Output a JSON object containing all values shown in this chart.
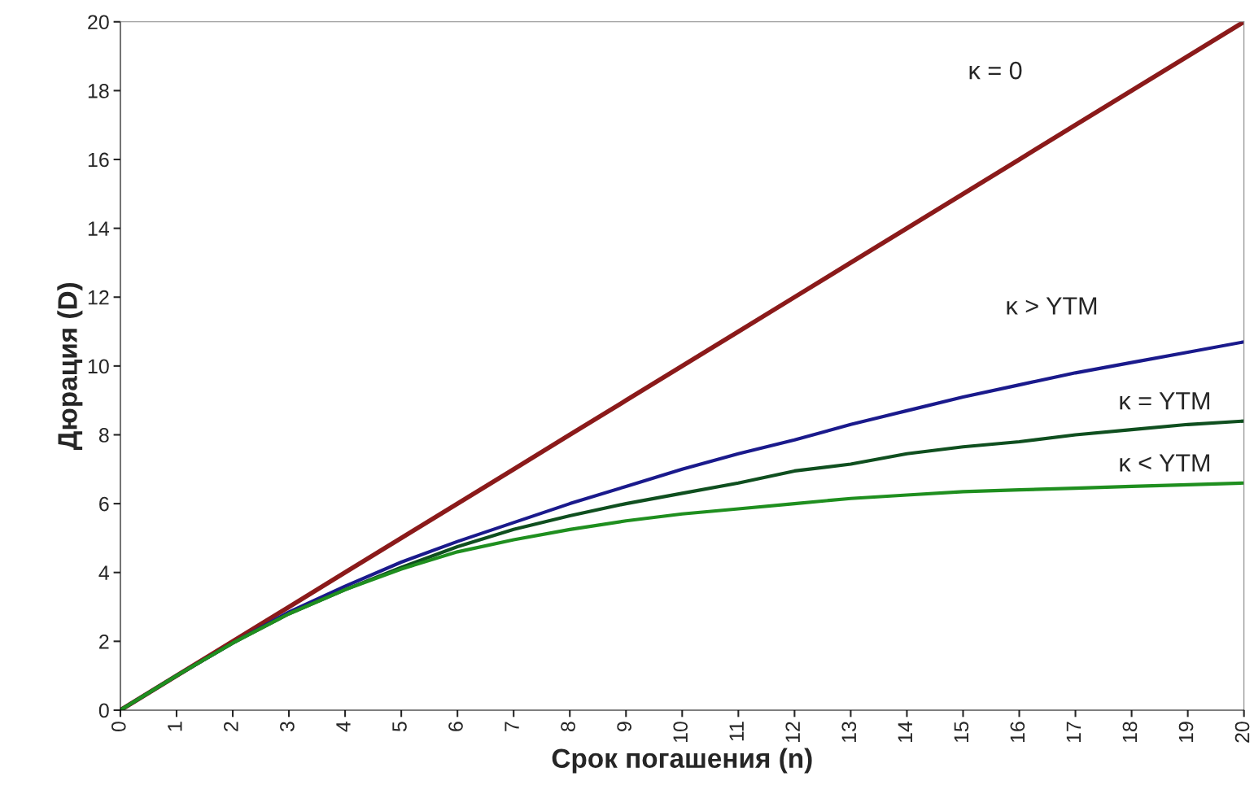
{
  "chart_data": {
    "type": "line",
    "xlabel": "Срок погашения (n)",
    "ylabel": "Дюрация (D)",
    "x": [
      0,
      1,
      2,
      3,
      4,
      5,
      6,
      7,
      8,
      9,
      10,
      11,
      12,
      13,
      14,
      15,
      16,
      17,
      18,
      19,
      20
    ],
    "series": [
      {
        "name": "κ = 0",
        "color": "#8b1a1a",
        "values": [
          0,
          1,
          2,
          3,
          4,
          5,
          6,
          7,
          8,
          9,
          10,
          11,
          12,
          13,
          14,
          15,
          16,
          17,
          18,
          19,
          20
        ]
      },
      {
        "name": "κ > YTM",
        "color": "#1a1a8c",
        "values": [
          0,
          1,
          1.95,
          2.85,
          3.6,
          4.3,
          4.9,
          5.45,
          6.0,
          6.5,
          7.0,
          7.45,
          7.85,
          8.3,
          8.7,
          9.1,
          9.45,
          9.8,
          10.1,
          10.4,
          10.7
        ]
      },
      {
        "name": "κ = YTM",
        "color": "#0f4f1f",
        "values": [
          0,
          1,
          1.95,
          2.8,
          3.5,
          4.15,
          4.75,
          5.25,
          5.65,
          6.0,
          6.3,
          6.6,
          6.95,
          7.15,
          7.45,
          7.65,
          7.8,
          8.0,
          8.15,
          8.3,
          8.4
        ]
      },
      {
        "name": "κ < YTM",
        "color": "#1f8f1f",
        "values": [
          0,
          1,
          1.95,
          2.8,
          3.5,
          4.1,
          4.6,
          4.95,
          5.25,
          5.5,
          5.7,
          5.85,
          6.0,
          6.15,
          6.25,
          6.35,
          6.4,
          6.45,
          6.5,
          6.55,
          6.6
        ]
      }
    ],
    "xlim": [
      0,
      20
    ],
    "xticks": [
      0,
      1,
      2,
      3,
      4,
      5,
      6,
      7,
      8,
      9,
      10,
      11,
      12,
      13,
      14,
      15,
      16,
      17,
      18,
      19,
      20
    ],
    "ylim": [
      0,
      20
    ],
    "yticks": [
      0,
      2,
      4,
      6,
      8,
      10,
      12,
      14,
      16,
      18,
      20
    ],
    "grid": false,
    "legend": false,
    "marker": "none",
    "line_style": "solid"
  }
}
